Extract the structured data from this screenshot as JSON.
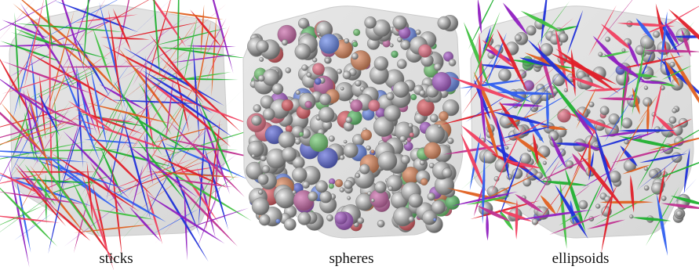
{
  "panels": [
    {
      "caption": "sticks"
    },
    {
      "caption": "spheres"
    },
    {
      "caption": "ellipsoids"
    }
  ]
}
